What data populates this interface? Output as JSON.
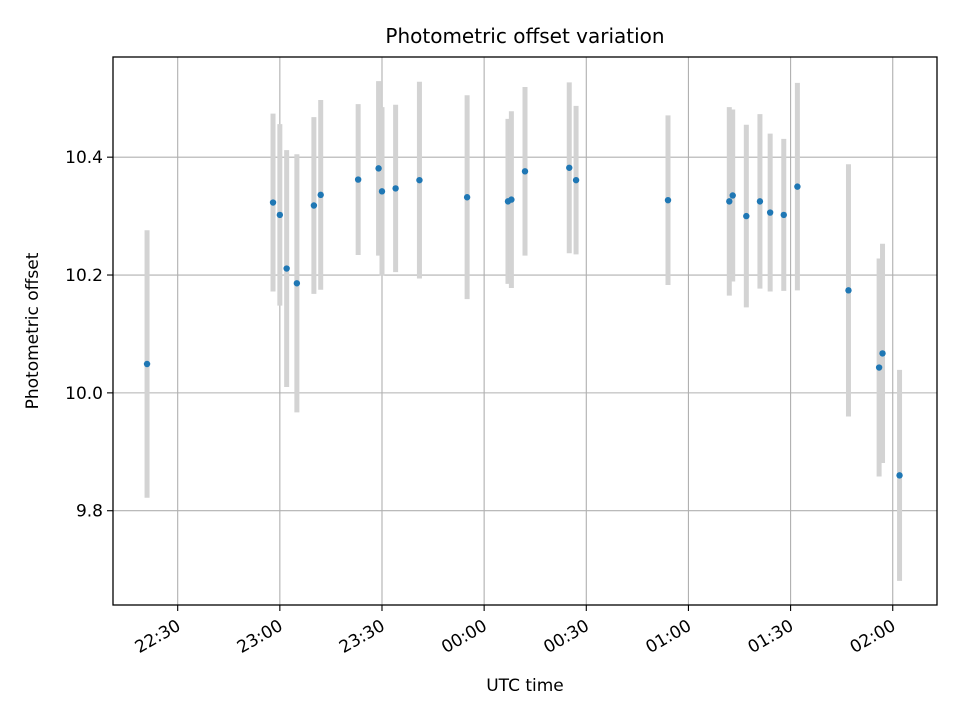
{
  "chart_data": {
    "type": "scatter",
    "title": "Photometric offset variation",
    "xlabel": "UTC time",
    "ylabel": "Photometric offset",
    "x_ticks": [
      "22:30",
      "23:00",
      "23:30",
      "00:00",
      "00:30",
      "01:00",
      "01:30",
      "02:00"
    ],
    "y_ticks": [
      "9.8",
      "10.0",
      "10.2",
      "10.4"
    ],
    "y_tick_values": [
      9.8,
      10.0,
      10.2,
      10.4
    ],
    "ylim": [
      9.64,
      10.57
    ],
    "xlim": [
      "22:11",
      "02:13"
    ],
    "grid": true,
    "colors": {
      "point": "#1f77b4",
      "errorbar": "#d3d3d3",
      "grid": "#b0b0b0"
    },
    "series": [
      {
        "points": [
          {
            "x": "22:21",
            "y": 10.049,
            "ylo": 9.822,
            "yhi": 10.276
          },
          {
            "x": "22:58",
            "y": 10.323,
            "ylo": 10.172,
            "yhi": 10.474
          },
          {
            "x": "23:00",
            "y": 10.302,
            "ylo": 10.148,
            "yhi": 10.456
          },
          {
            "x": "23:02",
            "y": 10.211,
            "ylo": 10.01,
            "yhi": 10.412
          },
          {
            "x": "23:05",
            "y": 10.186,
            "ylo": 9.967,
            "yhi": 10.405
          },
          {
            "x": "23:10",
            "y": 10.318,
            "ylo": 10.168,
            "yhi": 10.468
          },
          {
            "x": "23:12",
            "y": 10.336,
            "ylo": 10.175,
            "yhi": 10.497
          },
          {
            "x": "23:23",
            "y": 10.362,
            "ylo": 10.234,
            "yhi": 10.49
          },
          {
            "x": "23:29",
            "y": 10.381,
            "ylo": 10.233,
            "yhi": 10.529
          },
          {
            "x": "23:30",
            "y": 10.342,
            "ylo": 10.199,
            "yhi": 10.485
          },
          {
            "x": "23:34",
            "y": 10.347,
            "ylo": 10.205,
            "yhi": 10.489
          },
          {
            "x": "23:41",
            "y": 10.361,
            "ylo": 10.194,
            "yhi": 10.528
          },
          {
            "x": "23:55",
            "y": 10.332,
            "ylo": 10.159,
            "yhi": 10.505
          },
          {
            "x": "00:07",
            "y": 10.325,
            "ylo": 10.185,
            "yhi": 10.465
          },
          {
            "x": "00:08",
            "y": 10.328,
            "ylo": 10.178,
            "yhi": 10.478
          },
          {
            "x": "00:12",
            "y": 10.376,
            "ylo": 10.233,
            "yhi": 10.519
          },
          {
            "x": "00:25",
            "y": 10.382,
            "ylo": 10.237,
            "yhi": 10.527
          },
          {
            "x": "00:27",
            "y": 10.361,
            "ylo": 10.235,
            "yhi": 10.487
          },
          {
            "x": "00:54",
            "y": 10.327,
            "ylo": 10.183,
            "yhi": 10.471
          },
          {
            "x": "01:12",
            "y": 10.325,
            "ylo": 10.165,
            "yhi": 10.485
          },
          {
            "x": "01:13",
            "y": 10.335,
            "ylo": 10.189,
            "yhi": 10.481
          },
          {
            "x": "01:17",
            "y": 10.3,
            "ylo": 10.145,
            "yhi": 10.455
          },
          {
            "x": "01:21",
            "y": 10.325,
            "ylo": 10.177,
            "yhi": 10.473
          },
          {
            "x": "01:24",
            "y": 10.306,
            "ylo": 10.172,
            "yhi": 10.44
          },
          {
            "x": "01:28",
            "y": 10.302,
            "ylo": 10.173,
            "yhi": 10.431
          },
          {
            "x": "01:32",
            "y": 10.35,
            "ylo": 10.174,
            "yhi": 10.526
          },
          {
            "x": "01:47",
            "y": 10.174,
            "ylo": 9.96,
            "yhi": 10.388
          },
          {
            "x": "01:56",
            "y": 10.043,
            "ylo": 9.858,
            "yhi": 10.228
          },
          {
            "x": "01:57",
            "y": 10.067,
            "ylo": 9.881,
            "yhi": 10.253
          },
          {
            "x": "02:02",
            "y": 9.86,
            "ylo": 9.681,
            "yhi": 10.039
          }
        ]
      }
    ]
  }
}
